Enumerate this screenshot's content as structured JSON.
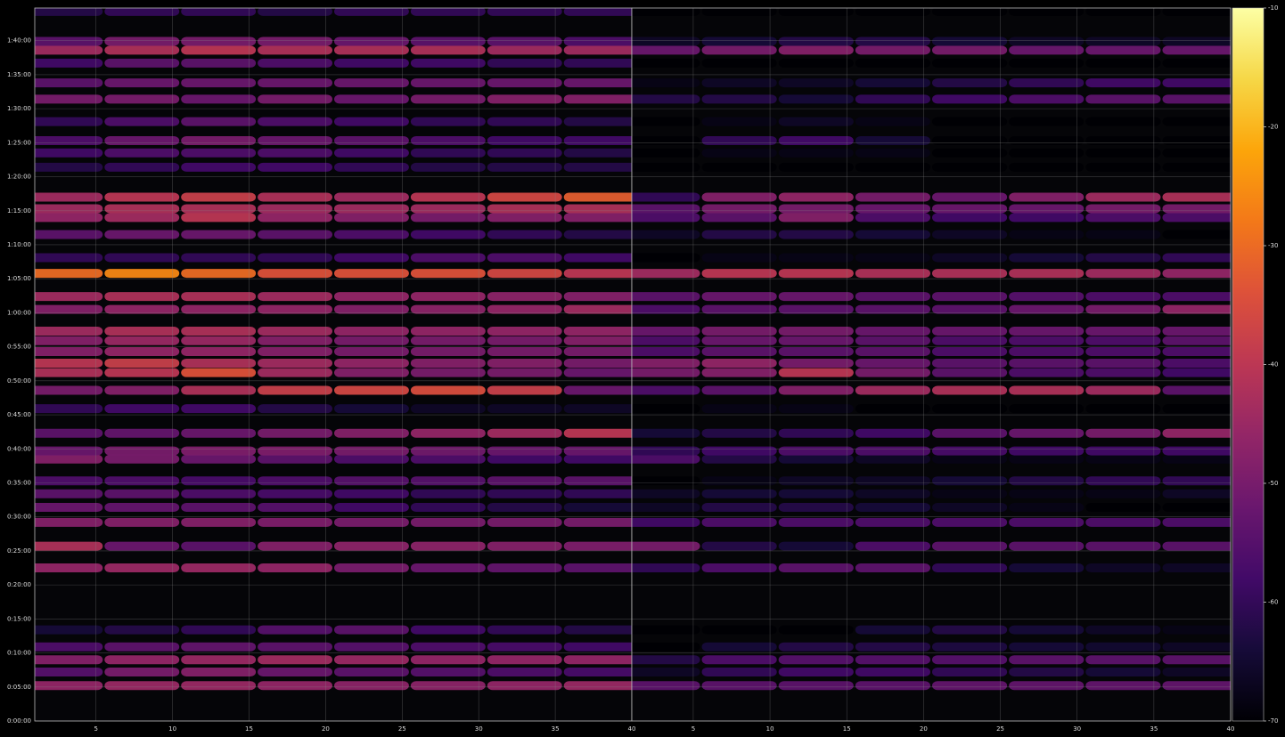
{
  "chart_data": [
    {
      "type": "heatmap",
      "grid": true,
      "x": [
        3,
        8,
        13,
        18,
        23,
        28,
        33,
        38
      ],
      "xlim": [
        1,
        40
      ],
      "xticks": [
        5,
        10,
        15,
        20,
        25,
        30,
        35,
        40
      ],
      "y": [
        5.2,
        7.2,
        9.0,
        10.9,
        13.4,
        22.5,
        25.7,
        29.2,
        31.4,
        33.4,
        35.3,
        38.5,
        39.7,
        42.3,
        45.9,
        48.6,
        51.2,
        52.6,
        54.3,
        55.9,
        57.3,
        60.5,
        62.4,
        65.8,
        68.1,
        71.5,
        74.0,
        75.3,
        77.0,
        81.4,
        83.5,
        85.3,
        88.1,
        91.4,
        93.8,
        96.7,
        98.6,
        99.9,
        104.3
      ],
      "ylim": [
        0,
        104.8
      ],
      "yticks": [
        {
          "value": 0,
          "label": "0:00:00"
        },
        {
          "value": 5,
          "label": "0:05:00"
        },
        {
          "value": 10,
          "label": "0:10:00"
        },
        {
          "value": 15,
          "label": "0:15:00"
        },
        {
          "value": 20,
          "label": "0:20:00"
        },
        {
          "value": 25,
          "label": "0:25:00"
        },
        {
          "value": 30,
          "label": "0:30:00"
        },
        {
          "value": 35,
          "label": "0:35:00"
        },
        {
          "value": 40,
          "label": "0:40:00"
        },
        {
          "value": 45,
          "label": "0:45:00"
        },
        {
          "value": 50,
          "label": "0:50:00"
        },
        {
          "value": 55,
          "label": "0:55:00"
        },
        {
          "value": 60,
          "label": "1:00:00"
        },
        {
          "value": 65,
          "label": "1:05:00"
        },
        {
          "value": 70,
          "label": "1:10:00"
        },
        {
          "value": 75,
          "label": "1:15:00"
        },
        {
          "value": 80,
          "label": "1:20:00"
        },
        {
          "value": 85,
          "label": "1:25:00"
        },
        {
          "value": 90,
          "label": "1:30:00"
        },
        {
          "value": 95,
          "label": "1:35:00"
        },
        {
          "value": 100,
          "label": "1:40:00"
        }
      ],
      "z": [
        [
          -46,
          -45,
          -45,
          -46,
          -47,
          -47,
          -46,
          -45
        ],
        [
          -55,
          -50,
          -48,
          -52,
          -54,
          -55,
          -56,
          -57
        ],
        [
          -48,
          -46,
          -45,
          -44,
          -45,
          -46,
          -46,
          -46
        ],
        [
          -56,
          -54,
          -53,
          -54,
          -55,
          -56,
          -57,
          -58
        ],
        [
          -64,
          -62,
          -60,
          -55,
          -54,
          -58,
          -60,
          -62
        ],
        [
          -46,
          -45,
          -45,
          -46,
          -50,
          -52,
          -53,
          -54
        ],
        [
          -42,
          -52,
          -54,
          -48,
          -47,
          -47,
          -48,
          -49
        ],
        [
          -48,
          -48,
          -48,
          -49,
          -50,
          -50,
          -50,
          -50
        ],
        [
          -52,
          -53,
          -54,
          -55,
          -58,
          -60,
          -62,
          -64
        ],
        [
          -54,
          -54,
          -56,
          -57,
          -58,
          -60,
          -60,
          -60
        ],
        [
          -56,
          -56,
          -57,
          -56,
          -55,
          -55,
          -54,
          -54
        ],
        [
          -48,
          -50,
          -52,
          -54,
          -56,
          -56,
          -58,
          -58
        ],
        [
          -52,
          -50,
          -49,
          -49,
          -50,
          -51,
          -52,
          -52
        ],
        [
          -54,
          -53,
          -52,
          -50,
          -48,
          -46,
          -44,
          -40
        ],
        [
          -60,
          -58,
          -58,
          -62,
          -64,
          -66,
          -66,
          -66
        ],
        [
          -50,
          -48,
          -42,
          -38,
          -36,
          -35,
          -38,
          -52
        ],
        [
          -42,
          -40,
          -34,
          -44,
          -48,
          -50,
          -50,
          -52
        ],
        [
          -40,
          -38,
          -42,
          -44,
          -46,
          -48,
          -48,
          -50
        ],
        [
          -48,
          -46,
          -46,
          -48,
          -50,
          -50,
          -50,
          -50
        ],
        [
          -48,
          -45,
          -45,
          -48,
          -50,
          -50,
          -50,
          -48
        ],
        [
          -44,
          -42,
          -42,
          -44,
          -46,
          -46,
          -46,
          -46
        ],
        [
          -48,
          -46,
          -46,
          -46,
          -48,
          -47,
          -46,
          -44
        ],
        [
          -44,
          -42,
          -42,
          -44,
          -46,
          -46,
          -47,
          -48
        ],
        [
          -30,
          -26,
          -30,
          -34,
          -34,
          -34,
          -36,
          -40
        ],
        [
          -60,
          -60,
          -60,
          -60,
          -58,
          -56,
          -56,
          -58
        ],
        [
          -54,
          -52,
          -52,
          -54,
          -56,
          -58,
          -60,
          -62
        ],
        [
          -46,
          -44,
          -40,
          -46,
          -48,
          -50,
          -48,
          -48
        ],
        [
          -44,
          -42,
          -42,
          -44,
          -44,
          -44,
          -42,
          -42
        ],
        [
          -44,
          -40,
          -38,
          -42,
          -44,
          -40,
          -36,
          -32
        ],
        [
          -62,
          -60,
          -58,
          -58,
          -60,
          -62,
          -62,
          -62
        ],
        [
          -58,
          -56,
          -56,
          -56,
          -58,
          -60,
          -60,
          -62
        ],
        [
          -56,
          -52,
          -50,
          -52,
          -54,
          -56,
          -58,
          -58
        ],
        [
          -60,
          -56,
          -54,
          -56,
          -58,
          -60,
          -60,
          -62
        ],
        [
          -50,
          -50,
          -52,
          -50,
          -52,
          -50,
          -48,
          -48
        ],
        [
          -54,
          -52,
          -52,
          -52,
          -52,
          -52,
          -52,
          -52
        ],
        [
          -58,
          -54,
          -54,
          -56,
          -58,
          -58,
          -60,
          -60
        ],
        [
          -44,
          -42,
          -40,
          -42,
          -42,
          -42,
          -44,
          -44
        ],
        [
          -54,
          -50,
          -50,
          -50,
          -52,
          -54,
          -54,
          -56
        ],
        [
          -62,
          -60,
          -60,
          -62,
          -60,
          -60,
          -60,
          -60
        ]
      ]
    },
    {
      "type": "heatmap",
      "grid": true,
      "x": [
        3,
        8,
        13,
        18,
        23,
        28,
        33,
        38
      ],
      "xlim": [
        1,
        40
      ],
      "xticks": [
        5,
        10,
        15,
        20,
        25,
        30,
        35,
        40
      ],
      "y": [
        5.2,
        7.2,
        9.0,
        10.9,
        13.4,
        22.5,
        25.7,
        29.2,
        31.4,
        33.4,
        35.3,
        38.5,
        39.7,
        42.3,
        45.9,
        48.6,
        51.2,
        52.6,
        54.3,
        55.9,
        57.3,
        60.5,
        62.4,
        65.8,
        68.1,
        71.5,
        74.0,
        75.3,
        77.0,
        81.4,
        83.5,
        85.3,
        88.1,
        91.4,
        93.8,
        96.7,
        98.6,
        99.9,
        104.3
      ],
      "ylim": [
        0,
        104.8
      ],
      "z": [
        [
          -54,
          -54,
          -54,
          -54,
          -53,
          -53,
          -53,
          -53
        ],
        [
          -66,
          -60,
          -58,
          -58,
          -60,
          -62,
          -64,
          -66
        ],
        [
          -62,
          -56,
          -55,
          -55,
          -55,
          -54,
          -54,
          -54
        ],
        [
          -70,
          -64,
          -62,
          -62,
          -63,
          -64,
          -65,
          -66
        ],
        [
          -70,
          -70,
          -70,
          -64,
          -62,
          -64,
          -66,
          -68
        ],
        [
          -60,
          -56,
          -54,
          -54,
          -60,
          -64,
          -66,
          -66
        ],
        [
          -50,
          -62,
          -64,
          -56,
          -54,
          -54,
          -54,
          -54
        ],
        [
          -58,
          -56,
          -56,
          -56,
          -56,
          -56,
          -56,
          -56
        ],
        [
          -66,
          -62,
          -62,
          -64,
          -66,
          -68,
          -70,
          -70
        ],
        [
          -66,
          -64,
          -64,
          -66,
          -68,
          -68,
          -68,
          -66
        ],
        [
          -70,
          -68,
          -66,
          -66,
          -64,
          -62,
          -60,
          -60
        ],
        [
          -56,
          -62,
          -64,
          -66,
          -68,
          -68,
          -68,
          -68
        ],
        [
          -60,
          -58,
          -56,
          -56,
          -57,
          -58,
          -58,
          -58
        ],
        [
          -64,
          -62,
          -60,
          -58,
          -54,
          -52,
          -50,
          -46
        ],
        [
          -70,
          -68,
          -68,
          -70,
          -70,
          -70,
          -70,
          -70
        ],
        [
          -56,
          -54,
          -48,
          -44,
          -42,
          -42,
          -44,
          -54
        ],
        [
          -50,
          -48,
          -40,
          -50,
          -54,
          -56,
          -56,
          -58
        ],
        [
          -48,
          -46,
          -50,
          -52,
          -54,
          -54,
          -54,
          -56
        ],
        [
          -56,
          -54,
          -54,
          -54,
          -56,
          -56,
          -56,
          -56
        ],
        [
          -56,
          -52,
          -52,
          -54,
          -56,
          -56,
          -56,
          -54
        ],
        [
          -52,
          -50,
          -50,
          -52,
          -52,
          -52,
          -52,
          -52
        ],
        [
          -56,
          -54,
          -54,
          -54,
          -54,
          -52,
          -50,
          -46
        ],
        [
          -54,
          -52,
          -52,
          -54,
          -54,
          -55,
          -56,
          -56
        ],
        [
          -44,
          -40,
          -40,
          -42,
          -42,
          -42,
          -44,
          -46
        ],
        [
          -70,
          -68,
          -68,
          -68,
          -66,
          -64,
          -62,
          -60
        ],
        [
          -66,
          -62,
          -62,
          -64,
          -66,
          -68,
          -68,
          -70
        ],
        [
          -56,
          -54,
          -48,
          -56,
          -58,
          -58,
          -56,
          -56
        ],
        [
          -54,
          -50,
          -50,
          -52,
          -52,
          -52,
          -50,
          -50
        ],
        [
          -60,
          -48,
          -46,
          -50,
          -52,
          -48,
          -44,
          -42
        ],
        [
          -70,
          -70,
          -70,
          -70,
          -70,
          -70,
          -70,
          -70
        ],
        [
          -70,
          -68,
          -68,
          -68,
          -70,
          -70,
          -70,
          -70
        ],
        [
          -70,
          -60,
          -58,
          -64,
          -70,
          -70,
          -70,
          -70
        ],
        [
          -70,
          -68,
          -66,
          -68,
          -70,
          -70,
          -70,
          -70
        ],
        [
          -62,
          -62,
          -64,
          -60,
          -58,
          -56,
          -54,
          -54
        ],
        [
          -68,
          -66,
          -66,
          -64,
          -62,
          -60,
          -58,
          -58
        ],
        [
          -70,
          -70,
          -70,
          -70,
          -70,
          -70,
          -70,
          -70
        ],
        [
          -52,
          -50,
          -48,
          -50,
          -50,
          -52,
          -52,
          -52
        ],
        [
          -66,
          -64,
          -62,
          -62,
          -64,
          -66,
          -66,
          -66
        ],
        [
          -70,
          -70,
          -70,
          -70,
          -70,
          -70,
          -70,
          -70
        ]
      ]
    },
    {
      "type": "colorbar",
      "colormap": "inferno",
      "zlim": [
        -70,
        -10
      ],
      "zticks": [
        -70,
        -60,
        -50,
        -40,
        -30,
        -20,
        -10
      ]
    }
  ]
}
